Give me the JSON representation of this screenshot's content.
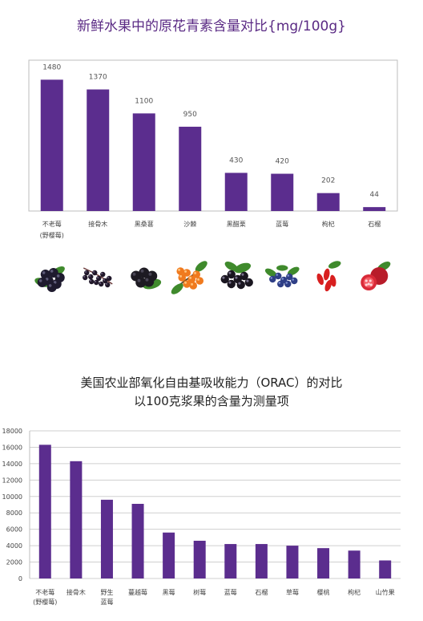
{
  "chart_data": [
    {
      "type": "bar",
      "title": "新鲜水果中的原花青素含量对比{mg/100g}",
      "categories": [
        "不老莓(野樱莓)",
        "接骨木",
        "黑桑葚",
        "沙棘",
        "黑醋栗",
        "蓝莓",
        "枸杞",
        "石榴"
      ],
      "category_lines": [
        [
          "不老莓",
          "(野樱莓)"
        ],
        [
          "接骨木"
        ],
        [
          "黑桑葚"
        ],
        [
          "沙棘"
        ],
        [
          "黑醋栗"
        ],
        [
          "蓝莓"
        ],
        [
          "枸杞"
        ],
        [
          "石榴"
        ]
      ],
      "values": [
        1480,
        1370,
        1100,
        950,
        430,
        420,
        202,
        44
      ],
      "data_labels": [
        "1480",
        "1370",
        "1100",
        "950",
        "430",
        "420",
        "202",
        "44"
      ],
      "ylim": [
        0,
        1700
      ],
      "grid": false,
      "bar_color": "#5b2d8e"
    },
    {
      "type": "bar",
      "title_lines": [
        "美国农业部氧化自由基吸收能力（ORAC）的对比",
        "以100克浆果的含量为测量项"
      ],
      "categories": [
        "不老莓(野樱莓)",
        "接骨木",
        "野生蓝莓",
        "蔓越莓",
        "黑莓",
        "树莓",
        "蓝莓",
        "石榴",
        "草莓",
        "樱桃",
        "枸杞",
        "山竹果"
      ],
      "category_lines": [
        [
          "不老莓",
          "(野樱莓)"
        ],
        [
          "接骨木"
        ],
        [
          "野生",
          "蓝莓"
        ],
        [
          "蔓越莓"
        ],
        [
          "黑莓"
        ],
        [
          "树莓"
        ],
        [
          "蓝莓"
        ],
        [
          "石榴"
        ],
        [
          "草莓"
        ],
        [
          "樱桃"
        ],
        [
          "枸杞"
        ],
        [
          "山竹果"
        ]
      ],
      "values": [
        16300,
        14300,
        9600,
        9100,
        5600,
        4600,
        4200,
        4200,
        4000,
        3700,
        3400,
        2200
      ],
      "ylim": [
        0,
        18000
      ],
      "yticks": [
        "0",
        "2000",
        "4000",
        "6000",
        "8000",
        "10000",
        "12000",
        "14000",
        "16000",
        "18000"
      ],
      "grid": true,
      "bar_color": "#5b2d8e"
    }
  ],
  "berry_icons": [
    "aronia-berry-icon",
    "elderberry-icon",
    "mulberry-icon",
    "sea-buckthorn-icon",
    "blackcurrant-icon",
    "blueberry-icon",
    "goji-berry-icon",
    "pomegranate-icon"
  ],
  "colors": {
    "bar": "#5b2d8e",
    "title": "#5a2a84"
  }
}
